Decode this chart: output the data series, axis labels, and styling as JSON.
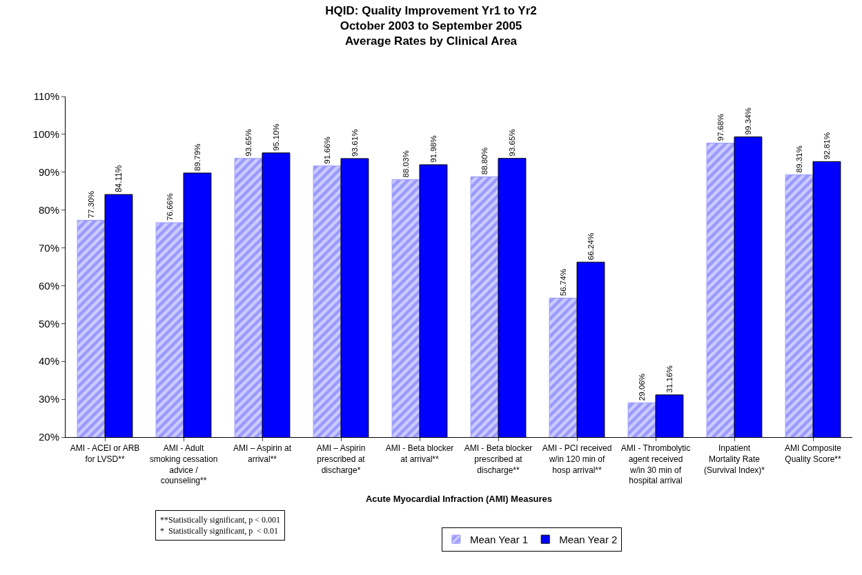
{
  "chart_data": {
    "type": "bar",
    "title": "HQID: Quality Improvement Yr1 to Yr2\nOctober 2003 to September 2005\nAverage Rates by Clinical Area",
    "xlabel": "Acute Myocardial Infraction (AMI) Measures",
    "categories": [
      "AMI - ACEI or ARB for LVSD**",
      "AMI - Adult smoking cessation advice / counseling**",
      "AMI – Aspirin at arrival**",
      "AMI – Aspirin prescribed at discharge*",
      "AMI - Beta blocker at arrival**",
      "AMI - Beta blocker prescribed at discharge**",
      "AMI - PCI received w/in 120 min of hosp arrival**",
      "AMI - Thrombolytic agent received w/in 30 min of hospital arrival",
      "Inpatient Mortality Rate (Survival Index)*",
      "AMI Composite Quality Score**"
    ],
    "series": [
      {
        "name": "Mean Year 1",
        "color": "#9999ff",
        "values": [
          77.3,
          76.66,
          93.65,
          91.66,
          88.03,
          88.8,
          56.74,
          29.06,
          97.68,
          89.31
        ],
        "value_labels": [
          "77.30%",
          "76.66%",
          "93.65%",
          "91.66%",
          "88.03%",
          "88.80%",
          "56.74%",
          "29.06%",
          "97.68%",
          "89.31%"
        ]
      },
      {
        "name": "Mean Year 2",
        "color": "#0000ff",
        "values": [
          84.11,
          89.79,
          95.1,
          93.61,
          91.98,
          93.65,
          66.24,
          31.16,
          99.34,
          92.81
        ],
        "value_labels": [
          "84.11%",
          "89.79%",
          "95.10%",
          "93.61%",
          "91.98%",
          "93.65%",
          "66.24%",
          "31.16%",
          "99.34%",
          "92.81%"
        ]
      }
    ],
    "ylim": [
      20,
      110
    ],
    "yticks": [
      {
        "value": 20,
        "label": "20%"
      },
      {
        "value": 30,
        "label": "30%"
      },
      {
        "value": 40,
        "label": "40%"
      },
      {
        "value": 50,
        "label": "50%"
      },
      {
        "value": 60,
        "label": "60%"
      },
      {
        "value": 70,
        "label": "70%"
      },
      {
        "value": 80,
        "label": "80%"
      },
      {
        "value": 90,
        "label": "90%"
      },
      {
        "value": 100,
        "label": "100%"
      },
      {
        "value": 110,
        "label": "110%"
      }
    ],
    "annotations": [
      "**Statistically significant, p < 0.001\n*  Statistically significant, p  < 0.01"
    ],
    "legend": "bottom",
    "grid": false
  }
}
